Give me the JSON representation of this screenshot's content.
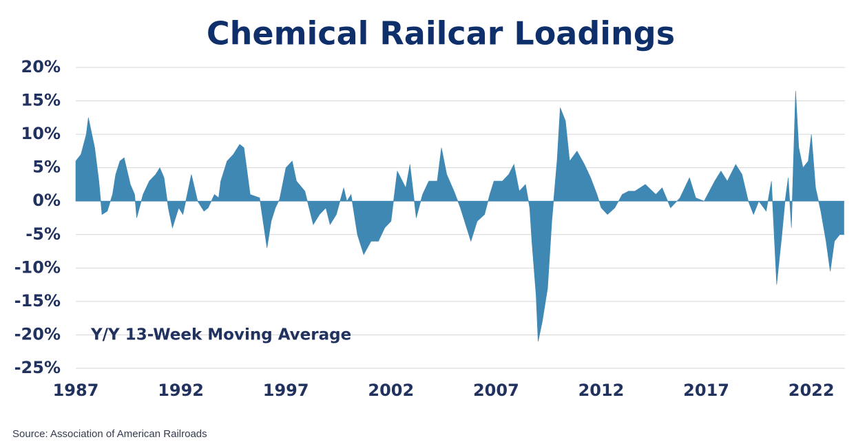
{
  "chart_data": {
    "type": "area",
    "title": "Chemical Railcar Loadings",
    "annotation": "Y/Y 13-Week Moving Average",
    "source": "Source:  Association of American Railroads",
    "color": "#3f88b3",
    "grid": true,
    "xlim": [
      1987,
      2023.6
    ],
    "xticks": [
      1987,
      1992,
      1997,
      2002,
      2007,
      2012,
      2017,
      2022
    ],
    "ylim": [
      -25,
      20
    ],
    "yticks": [
      {
        "value": 20,
        "label": "20%"
      },
      {
        "value": 15,
        "label": "15%"
      },
      {
        "value": 10,
        "label": "10%"
      },
      {
        "value": 5,
        "label": "5%"
      },
      {
        "value": 0,
        "label": "0%"
      },
      {
        "value": -5,
        "label": "-5%"
      },
      {
        "value": -10,
        "label": "-10%"
      },
      {
        "value": -15,
        "label": "-15%"
      },
      {
        "value": -20,
        "label": "-20%"
      },
      {
        "value": -25,
        "label": "-25%"
      }
    ],
    "x": [
      1987.0,
      1987.25,
      1987.5,
      1987.6,
      1987.9,
      1988.1,
      1988.25,
      1988.5,
      1988.75,
      1988.9,
      1989.1,
      1989.3,
      1989.6,
      1989.8,
      1989.9,
      1990.2,
      1990.5,
      1990.8,
      1991.0,
      1991.2,
      1991.4,
      1991.6,
      1991.9,
      1992.1,
      1992.3,
      1992.5,
      1992.8,
      1993.1,
      1993.3,
      1993.6,
      1993.8,
      1993.9,
      1994.2,
      1994.5,
      1994.8,
      1995.0,
      1995.3,
      1995.75,
      1996.1,
      1996.3,
      1996.5,
      1996.7,
      1997.0,
      1997.3,
      1997.5,
      1997.9,
      1998.3,
      1998.6,
      1998.9,
      1999.1,
      1999.4,
      1999.75,
      1999.9,
      2000.1,
      2000.4,
      2000.7,
      2001.05,
      2001.4,
      2001.7,
      2002.0,
      2002.3,
      2002.7,
      2002.9,
      2003.2,
      2003.5,
      2003.8,
      2004.2,
      2004.4,
      2004.65,
      2005.0,
      2005.3,
      2005.6,
      2005.8,
      2006.1,
      2006.45,
      2006.7,
      2006.9,
      2007.3,
      2007.6,
      2007.85,
      2008.1,
      2008.4,
      2008.6,
      2008.7,
      2008.9,
      2009.0,
      2009.2,
      2009.45,
      2009.65,
      2009.9,
      2010.05,
      2010.3,
      2010.5,
      2010.85,
      2011.2,
      2011.5,
      2011.8,
      2012.0,
      2012.3,
      2012.65,
      2013.0,
      2013.3,
      2013.6,
      2014.1,
      2014.6,
      2014.9,
      2015.3,
      2015.75,
      2016.2,
      2016.5,
      2016.9,
      2017.4,
      2017.7,
      2018.0,
      2018.4,
      2018.7,
      2019.0,
      2019.25,
      2019.5,
      2019.85,
      2020.1,
      2020.2,
      2020.35,
      2020.6,
      2020.75,
      2020.9,
      2021.05,
      2021.25,
      2021.4,
      2021.6,
      2021.85,
      2022.0,
      2022.2,
      2022.45,
      2022.7,
      2022.9,
      2023.1,
      2023.35,
      2023.55
    ],
    "values": [
      6,
      7,
      10,
      12.5,
      8,
      3,
      -2,
      -1.5,
      1,
      4,
      6,
      6.5,
      2.5,
      1,
      -2.5,
      1,
      3,
      4,
      5,
      3.5,
      -1,
      -4,
      -1,
      -2,
      1,
      4,
      0,
      -1.5,
      -1,
      1,
      0.5,
      3,
      6,
      7,
      8.5,
      8,
      1,
      0.5,
      -7,
      -3,
      -1,
      0.3,
      5,
      6,
      3,
      1.5,
      -3.5,
      -2,
      -1,
      -3.5,
      -2,
      2,
      0,
      1,
      -5,
      -8,
      -6,
      -6,
      -4,
      -3,
      4.5,
      2,
      5.5,
      -2.5,
      1,
      3,
      3,
      8,
      4,
      1.5,
      -1,
      -4,
      -6,
      -3,
      -2,
      1,
      3,
      3,
      4,
      5.5,
      1.5,
      2.5,
      -1,
      -6,
      -14,
      -21,
      -18,
      -13,
      -3,
      6,
      14,
      12,
      6,
      7.5,
      5.5,
      3.5,
      1,
      -1,
      -2,
      -1,
      1,
      1.5,
      1.5,
      2.5,
      1,
      2,
      -1,
      0.5,
      3.5,
      0.5,
      0,
      3,
      4.5,
      3,
      5.5,
      4,
      0,
      -2,
      0,
      -1.5,
      3,
      -3,
      -12.5,
      -5,
      0,
      3.5,
      -4,
      16.5,
      8,
      5,
      6,
      10,
      2,
      -1.5,
      -6,
      -10.5,
      -6,
      -5,
      -5
    ]
  }
}
